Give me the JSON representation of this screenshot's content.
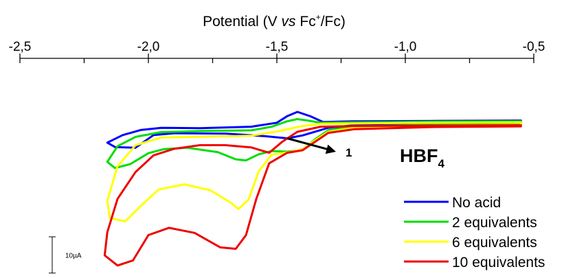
{
  "chart_data": {
    "type": "line",
    "title": "",
    "xlabel": {
      "prefix": "Potential (V ",
      "italic": "vs",
      "rest": " Fc",
      "sup": "+",
      "suffix": "/Fc)"
    },
    "ylabel": "",
    "xlim": [
      -2.5,
      -0.5
    ],
    "x_axis_position": "top",
    "x_ticks": [
      -2.5,
      -2.0,
      -1.5,
      -1.0,
      -0.5
    ],
    "x_tick_labels": [
      "-2,5",
      "-2,0",
      "-1,5",
      "-1,0",
      "-0,5"
    ],
    "x_minor_ticks": [
      -2.25,
      -1.75,
      -1.25,
      -0.75
    ],
    "y_unit": "µA",
    "ylim": [
      -37,
      13
    ],
    "grid": false,
    "legend_position": "bottom-right",
    "acid_label": {
      "main": "HBF",
      "sub": "4"
    },
    "annotation": {
      "label": "1",
      "arrow_from": [
        -1.46,
        -1.3
      ],
      "arrow_to": [
        -1.27,
        -5.0
      ]
    },
    "scale_bar": {
      "label": "10µA",
      "value": 10
    },
    "series": [
      {
        "name": "No acid",
        "color": "#0000ff",
        "points": [
          [
            -0.55,
            3.6
          ],
          [
            -0.9,
            3.5
          ],
          [
            -1.2,
            3.4
          ],
          [
            -1.32,
            3.2
          ],
          [
            -1.37,
            4.8
          ],
          [
            -1.42,
            6.0
          ],
          [
            -1.46,
            4.8
          ],
          [
            -1.5,
            3.0
          ],
          [
            -1.6,
            1.9
          ],
          [
            -1.8,
            1.5
          ],
          [
            -1.95,
            1.6
          ],
          [
            -2.03,
            1.0
          ],
          [
            -2.1,
            -0.4
          ],
          [
            -2.16,
            -2.5
          ],
          [
            -2.13,
            -3.7
          ],
          [
            -2.05,
            -3.9
          ],
          [
            -2.02,
            -2.4
          ],
          [
            -1.98,
            -0.4
          ],
          [
            -1.9,
            0.1
          ],
          [
            -1.7,
            0.0
          ],
          [
            -1.55,
            -0.7
          ],
          [
            -1.46,
            -1.3
          ],
          [
            -1.4,
            -0.5
          ],
          [
            -1.3,
            1.6
          ],
          [
            -1.2,
            2.3
          ],
          [
            -0.9,
            2.9
          ],
          [
            -0.55,
            3.1
          ]
        ]
      },
      {
        "name": "2 equivalents",
        "color": "#00dd00",
        "points": [
          [
            -0.55,
            3.4
          ],
          [
            -0.9,
            3.3
          ],
          [
            -1.2,
            3.1
          ],
          [
            -1.33,
            3.0
          ],
          [
            -1.38,
            3.6
          ],
          [
            -1.42,
            4.0
          ],
          [
            -1.46,
            3.4
          ],
          [
            -1.52,
            1.9
          ],
          [
            -1.6,
            0.9
          ],
          [
            -1.8,
            0.7
          ],
          [
            -1.95,
            0.4
          ],
          [
            -2.05,
            -0.9
          ],
          [
            -2.12,
            -3.5
          ],
          [
            -2.16,
            -7.8
          ],
          [
            -2.13,
            -9.5
          ],
          [
            -2.07,
            -8.4
          ],
          [
            -2.0,
            -5.4
          ],
          [
            -1.94,
            -4.3
          ],
          [
            -1.85,
            -3.9
          ],
          [
            -1.73,
            -5.1
          ],
          [
            -1.66,
            -7.1
          ],
          [
            -1.62,
            -7.4
          ],
          [
            -1.57,
            -5.7
          ],
          [
            -1.52,
            -4.8
          ],
          [
            -1.46,
            -5.0
          ],
          [
            -1.4,
            -4.5
          ],
          [
            -1.35,
            -1.5
          ],
          [
            -1.3,
            0.9
          ],
          [
            -1.2,
            1.9
          ],
          [
            -0.9,
            2.5
          ],
          [
            -0.55,
            2.7
          ]
        ]
      },
      {
        "name": "6 equivalents",
        "color": "#ffff00",
        "points": [
          [
            -0.55,
            3.1
          ],
          [
            -0.9,
            3.0
          ],
          [
            -1.2,
            2.8
          ],
          [
            -1.33,
            2.7
          ],
          [
            -1.4,
            2.1
          ],
          [
            -1.5,
            0.6
          ],
          [
            -1.6,
            -0.6
          ],
          [
            -1.8,
            -0.9
          ],
          [
            -1.95,
            -1.1
          ],
          [
            -2.05,
            -3.2
          ],
          [
            -2.12,
            -9.0
          ],
          [
            -2.16,
            -18.5
          ],
          [
            -2.15,
            -23.3
          ],
          [
            -2.09,
            -24.2
          ],
          [
            -2.03,
            -20.0
          ],
          [
            -1.96,
            -15.4
          ],
          [
            -1.86,
            -14.0
          ],
          [
            -1.76,
            -15.6
          ],
          [
            -1.68,
            -19.0
          ],
          [
            -1.65,
            -20.8
          ],
          [
            -1.61,
            -18.2
          ],
          [
            -1.57,
            -10.3
          ],
          [
            -1.52,
            -5.8
          ],
          [
            -1.45,
            -5.1
          ],
          [
            -1.4,
            -4.3
          ],
          [
            -1.35,
            -1.8
          ],
          [
            -1.3,
            0.5
          ],
          [
            -1.2,
            1.6
          ],
          [
            -0.9,
            2.2
          ],
          [
            -0.55,
            2.4
          ]
        ]
      },
      {
        "name": "10 equivalents",
        "color": "#ee0000",
        "points": [
          [
            -0.55,
            2.3
          ],
          [
            -0.9,
            2.2
          ],
          [
            -1.2,
            2.1
          ],
          [
            -1.33,
            1.9
          ],
          [
            -1.42,
            0.5
          ],
          [
            -1.48,
            -2.3
          ],
          [
            -1.53,
            -5.3
          ],
          [
            -1.6,
            -3.8
          ],
          [
            -1.7,
            -3.2
          ],
          [
            -1.8,
            -3.2
          ],
          [
            -1.9,
            -4.2
          ],
          [
            -1.98,
            -6.0
          ],
          [
            -2.05,
            -10.6
          ],
          [
            -2.12,
            -18.0
          ],
          [
            -2.16,
            -27.2
          ],
          [
            -2.17,
            -33.6
          ],
          [
            -2.12,
            -36.4
          ],
          [
            -2.06,
            -35.0
          ],
          [
            -2.0,
            -28.0
          ],
          [
            -1.92,
            -26.0
          ],
          [
            -1.82,
            -27.4
          ],
          [
            -1.72,
            -31.4
          ],
          [
            -1.66,
            -31.8
          ],
          [
            -1.62,
            -28.0
          ],
          [
            -1.58,
            -18.0
          ],
          [
            -1.53,
            -8.2
          ],
          [
            -1.46,
            -5.3
          ],
          [
            -1.4,
            -4.6
          ],
          [
            -1.35,
            -2.2
          ],
          [
            -1.3,
            0.2
          ],
          [
            -1.2,
            1.2
          ],
          [
            -0.9,
            1.8
          ],
          [
            -0.55,
            2.0
          ]
        ]
      }
    ]
  }
}
